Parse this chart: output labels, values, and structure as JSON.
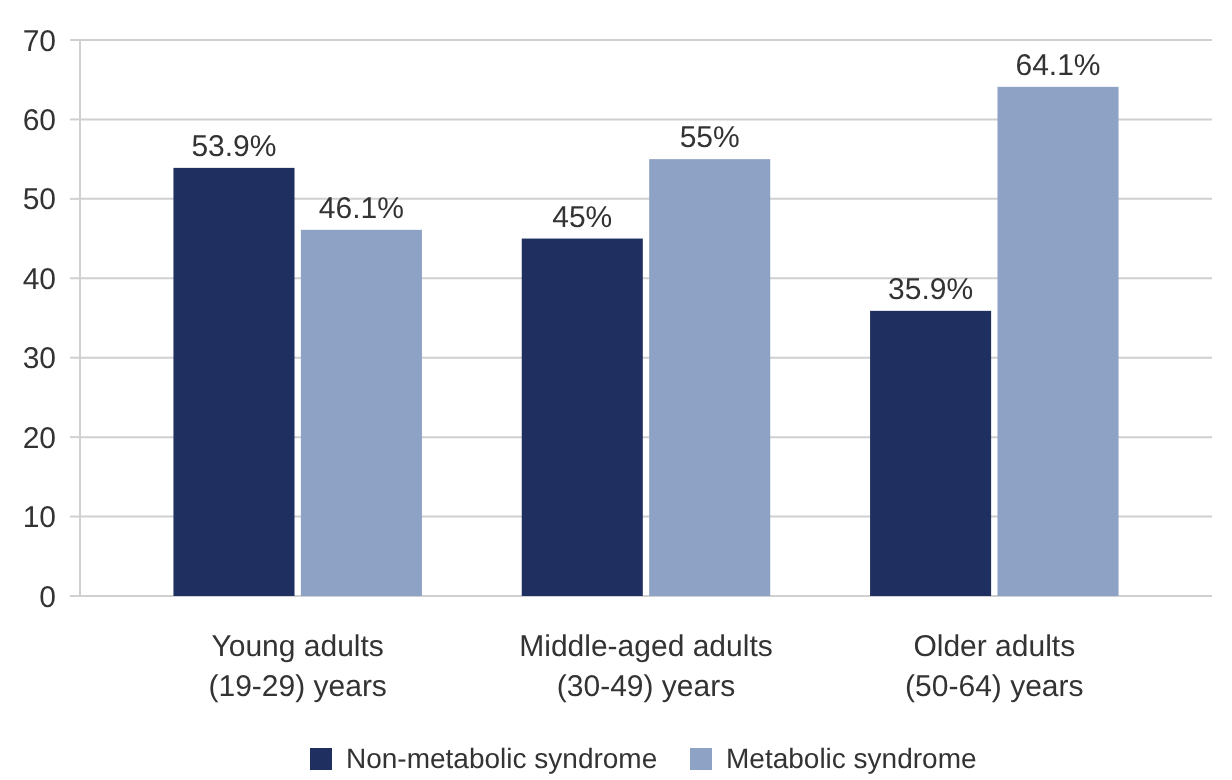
{
  "chart_data": {
    "type": "bar",
    "categories": [
      "Young adults\n(19-29) years",
      "Middle-aged adults\n(30-49) years",
      "Older adults\n(50-64) years"
    ],
    "series": [
      {
        "name": "Non-metabolic syndrome",
        "color": "#1f2f5f",
        "values": [
          53.9,
          45,
          35.9
        ],
        "value_labels": [
          "53.9%",
          "45%",
          "35.9%"
        ]
      },
      {
        "name": "Metabolic syndrome",
        "color": "#8ea2c6",
        "values": [
          46.1,
          55,
          64.1
        ],
        "value_labels": [
          "46.1%",
          "55%",
          "64.1%"
        ]
      }
    ],
    "ylim": [
      0,
      70
    ],
    "yticks": [
      0,
      10,
      20,
      30,
      40,
      50,
      60,
      70
    ],
    "grid": "y",
    "legend": "bottom"
  }
}
